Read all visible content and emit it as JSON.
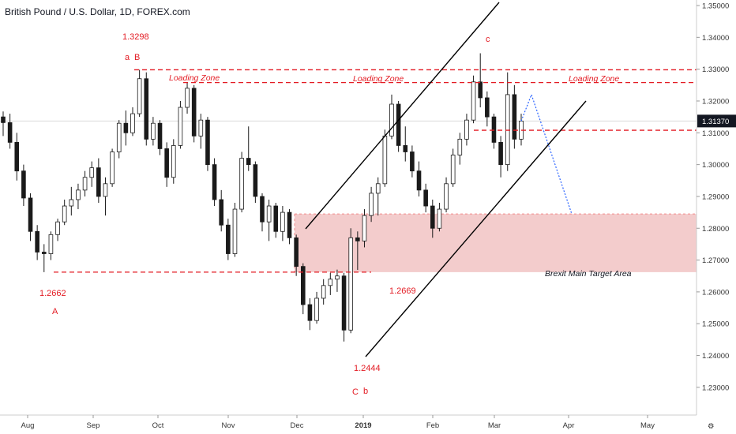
{
  "chart_data": {
    "type": "candlestick",
    "title": "British Pound / U.S. Dollar, 1D, FOREX.com",
    "ylim": [
      1.2255,
      1.3505
    ],
    "y_ticks": [
      "1.35000",
      "1.34000",
      "1.33000",
      "1.32000",
      "1.31000",
      "1.30000",
      "1.29000",
      "1.28000",
      "1.27000",
      "1.26000",
      "1.25000",
      "1.24000",
      "1.23000"
    ],
    "x_ticks": [
      "Aug",
      "Sep",
      "Oct",
      "Nov",
      "Dec",
      "2019",
      "Feb",
      "Mar",
      "Apr",
      "May"
    ],
    "current_price": "1.31370",
    "zone_top": 1.2845,
    "zone_bottom": 1.2662,
    "zone_label": "Brexit Main Target Area",
    "loading_zone_label": "Loading Zone",
    "levels": [
      {
        "value": 1.3298
      },
      {
        "value": 1.3258
      },
      {
        "value": 1.3108
      },
      {
        "value": 1.2662
      }
    ],
    "annotations": {
      "high_1": "1.3298",
      "a": "a",
      "B": "B",
      "low_1": "1.2662",
      "A": "A",
      "low_2": "1.2444",
      "C": "C",
      "b": "b",
      "low_3": "1.2669",
      "c": "c"
    },
    "waypoints": [
      [
        1.315,
        1.3167,
        1.309,
        1.3132
      ],
      [
        1.3132,
        1.316,
        1.305,
        1.307
      ],
      [
        1.307,
        1.31,
        1.295,
        1.298
      ],
      [
        1.298,
        1.3,
        1.287,
        1.2895
      ],
      [
        1.2895,
        1.291,
        1.276,
        1.279
      ],
      [
        1.279,
        1.281,
        1.27,
        1.2725
      ],
      [
        1.2725,
        1.275,
        1.2662,
        1.272
      ],
      [
        1.272,
        1.279,
        1.27,
        1.278
      ],
      [
        1.278,
        1.283,
        1.276,
        1.282
      ],
      [
        1.282,
        1.289,
        1.281,
        1.287
      ],
      [
        1.287,
        1.293,
        1.284,
        1.289
      ],
      [
        1.289,
        1.294,
        1.286,
        1.292
      ],
      [
        1.292,
        1.298,
        1.29,
        1.296
      ],
      [
        1.296,
        1.301,
        1.293,
        1.299
      ],
      [
        1.299,
        1.302,
        1.288,
        1.29
      ],
      [
        1.29,
        1.296,
        1.284,
        1.294
      ],
      [
        1.294,
        1.305,
        1.293,
        1.304
      ],
      [
        1.304,
        1.314,
        1.302,
        1.313
      ],
      [
        1.313,
        1.317,
        1.306,
        1.31
      ],
      [
        1.31,
        1.318,
        1.309,
        1.316
      ],
      [
        1.316,
        1.3298,
        1.315,
        1.327
      ],
      [
        1.327,
        1.329,
        1.306,
        1.308
      ],
      [
        1.308,
        1.315,
        1.306,
        1.313
      ],
      [
        1.313,
        1.314,
        1.303,
        1.305
      ],
      [
        1.305,
        1.307,
        1.293,
        1.296
      ],
      [
        1.296,
        1.308,
        1.294,
        1.306
      ],
      [
        1.306,
        1.32,
        1.305,
        1.318
      ],
      [
        1.318,
        1.3258,
        1.316,
        1.324
      ],
      [
        1.324,
        1.325,
        1.307,
        1.309
      ],
      [
        1.309,
        1.316,
        1.305,
        1.314
      ],
      [
        1.314,
        1.315,
        1.298,
        1.3
      ],
      [
        1.3,
        1.302,
        1.287,
        1.289
      ],
      [
        1.289,
        1.292,
        1.279,
        1.281
      ],
      [
        1.281,
        1.283,
        1.27,
        1.272
      ],
      [
        1.272,
        1.288,
        1.271,
        1.286
      ],
      [
        1.286,
        1.304,
        1.285,
        1.302
      ],
      [
        1.302,
        1.312,
        1.298,
        1.3
      ],
      [
        1.3,
        1.301,
        1.288,
        1.29
      ],
      [
        1.29,
        1.291,
        1.279,
        1.282
      ],
      [
        1.282,
        1.289,
        1.276,
        1.287
      ],
      [
        1.287,
        1.288,
        1.277,
        1.279
      ],
      [
        1.279,
        1.287,
        1.276,
        1.285
      ],
      [
        1.285,
        1.286,
        1.275,
        1.277
      ],
      [
        1.277,
        1.278,
        1.265,
        1.268
      ],
      [
        1.268,
        1.269,
        1.253,
        1.256
      ],
      [
        1.256,
        1.258,
        1.248,
        1.251
      ],
      [
        1.251,
        1.26,
        1.25,
        1.258
      ],
      [
        1.258,
        1.264,
        1.256,
        1.262
      ],
      [
        1.262,
        1.266,
        1.259,
        1.264
      ],
      [
        1.264,
        1.267,
        1.26,
        1.265
      ],
      [
        1.265,
        1.266,
        1.2444,
        1.248
      ],
      [
        1.248,
        1.28,
        1.247,
        1.277
      ],
      [
        1.277,
        1.279,
        1.2669,
        1.276
      ],
      [
        1.276,
        1.286,
        1.274,
        1.284
      ],
      [
        1.284,
        1.293,
        1.282,
        1.291
      ],
      [
        1.291,
        1.296,
        1.284,
        1.294
      ],
      [
        1.294,
        1.311,
        1.293,
        1.309
      ],
      [
        1.309,
        1.322,
        1.308,
        1.319
      ],
      [
        1.319,
        1.32,
        1.304,
        1.306
      ],
      [
        1.306,
        1.312,
        1.301,
        1.304
      ],
      [
        1.304,
        1.306,
        1.296,
        1.298
      ],
      [
        1.298,
        1.301,
        1.29,
        1.292
      ],
      [
        1.292,
        1.294,
        1.285,
        1.287
      ],
      [
        1.287,
        1.289,
        1.277,
        1.28
      ],
      [
        1.28,
        1.288,
        1.279,
        1.286
      ],
      [
        1.286,
        1.296,
        1.285,
        1.294
      ],
      [
        1.294,
        1.305,
        1.293,
        1.303
      ],
      [
        1.303,
        1.31,
        1.3,
        1.308
      ],
      [
        1.308,
        1.316,
        1.306,
        1.314
      ],
      [
        1.314,
        1.328,
        1.313,
        1.326
      ],
      [
        1.326,
        1.335,
        1.318,
        1.321
      ],
      [
        1.321,
        1.323,
        1.312,
        1.315
      ],
      [
        1.315,
        1.316,
        1.305,
        1.307
      ],
      [
        1.307,
        1.309,
        1.296,
        1.3
      ],
      [
        1.3,
        1.329,
        1.298,
        1.322
      ],
      [
        1.322,
        1.325,
        1.305,
        1.308
      ],
      [
        1.308,
        1.316,
        1.306,
        1.3137
      ]
    ],
    "projection": [
      {
        "date": "2019-03-11",
        "value": 1.3137
      },
      {
        "date": "2019-03-15",
        "value": 1.322
      },
      {
        "date": "2019-03-29",
        "value": 1.2845
      }
    ]
  }
}
